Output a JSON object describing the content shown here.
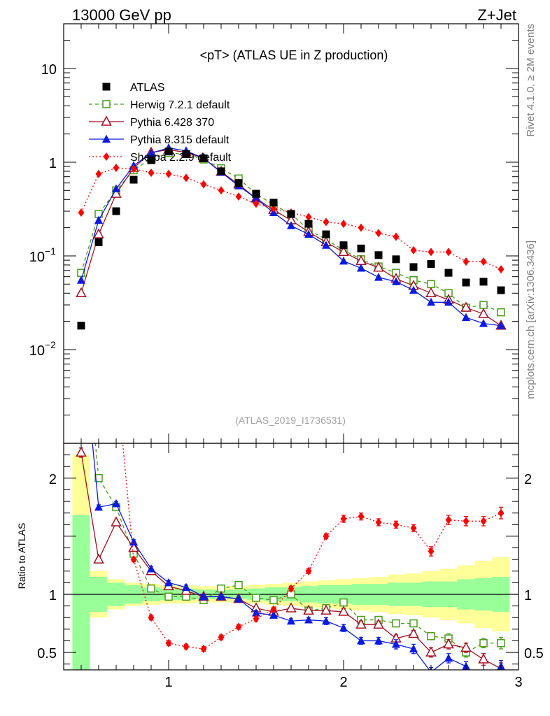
{
  "header": {
    "left": "13000 GeV pp",
    "right": "Z+Jet"
  },
  "side_labels": {
    "top": "Rivet 4.1.0, ≥ 2M events",
    "bottom": "mcplots.cern.ch [arXiv:1306.3436]"
  },
  "chart_data": {
    "type": "line",
    "title": "<pT> (ATLAS UE in Z production)",
    "analysis_id": "(ATLAS_2019_I1736531)",
    "xlabel": "",
    "ylabel_main": "",
    "ylabel_ratio": "Ratio to ATLAS",
    "xlim": [
      0.4,
      3.0
    ],
    "ylim_main_log": [
      0.001,
      30
    ],
    "ylim_ratio": [
      0.35,
      2.3
    ],
    "x_ticks": [
      {
        "value": 1,
        "label": "1"
      },
      {
        "value": 2,
        "label": "2"
      },
      {
        "value": 3,
        "label": "3"
      }
    ],
    "y_ticks_main": [
      {
        "value": 10,
        "label": "10",
        "sup": ""
      },
      {
        "value": 1,
        "label": "1",
        "sup": ""
      },
      {
        "value": 0.1,
        "label": "10",
        "sup": "−1"
      },
      {
        "value": 0.01,
        "label": "10",
        "sup": "−2"
      }
    ],
    "y_ticks_ratio": [
      {
        "value": 2,
        "label": "2"
      },
      {
        "value": 1,
        "label": "1"
      },
      {
        "value": 0.5,
        "label": "0.5"
      }
    ],
    "x": [
      0.5,
      0.6,
      0.7,
      0.8,
      0.9,
      1.0,
      1.1,
      1.2,
      1.3,
      1.4,
      1.5,
      1.6,
      1.7,
      1.8,
      1.9,
      2.0,
      2.1,
      2.2,
      2.3,
      2.4,
      2.5,
      2.6,
      2.7,
      2.8,
      2.9
    ],
    "atlas": [
      0.018,
      0.14,
      0.3,
      0.65,
      1.05,
      1.3,
      1.22,
      1.1,
      0.8,
      0.6,
      0.46,
      0.37,
      0.28,
      0.22,
      0.17,
      0.13,
      0.12,
      0.102,
      0.092,
      0.076,
      0.082,
      0.066,
      0.052,
      0.053,
      0.043
    ],
    "series": [
      {
        "name": "Herwig 7.2.1 default",
        "color": "#4a9a1a",
        "marker": "open-square",
        "dash": "5,4",
        "values": [
          0.066,
          0.28,
          0.5,
          0.82,
          1.1,
          1.25,
          1.22,
          1.07,
          0.86,
          0.67,
          0.46,
          0.35,
          0.28,
          0.19,
          0.15,
          0.115,
          0.092,
          0.077,
          0.066,
          0.055,
          0.05,
          0.04,
          0.028,
          0.03,
          0.025
        ],
        "ratio": [
          3.6,
          2.0,
          1.75,
          1.35,
          1.05,
          0.98,
          0.98,
          0.95,
          1.05,
          1.08,
          0.97,
          0.95,
          1.0,
          0.86,
          0.88,
          0.93,
          0.78,
          0.78,
          0.75,
          0.75,
          0.64,
          0.62,
          0.5,
          0.58,
          0.58
        ],
        "ratio_err": [
          0,
          0.02,
          0.02,
          0.02,
          0.02,
          0.02,
          0.02,
          0.02,
          0.02,
          0.02,
          0.02,
          0.02,
          0.02,
          0.02,
          0.03,
          0.03,
          0.03,
          0.03,
          0.03,
          0.03,
          0.03,
          0.04,
          0.04,
          0.04,
          0.05
        ]
      },
      {
        "name": "Pythia 6.428 370",
        "color": "#a01020",
        "marker": "open-triangle",
        "dash": "",
        "values": [
          0.04,
          0.17,
          0.46,
          0.87,
          1.27,
          1.36,
          1.27,
          1.1,
          0.79,
          0.58,
          0.41,
          0.31,
          0.24,
          0.18,
          0.14,
          0.11,
          0.088,
          0.075,
          0.057,
          0.048,
          0.04,
          0.034,
          0.028,
          0.024,
          0.018
        ],
        "ratio": [
          2.22,
          1.3,
          1.62,
          1.4,
          1.2,
          1.07,
          1.03,
          0.98,
          0.98,
          0.96,
          0.88,
          0.85,
          0.88,
          0.86,
          0.86,
          0.85,
          0.74,
          0.74,
          0.62,
          0.66,
          0.5,
          0.57,
          0.54,
          0.44,
          0.36
        ],
        "ratio_err": [
          0.04,
          0.02,
          0.02,
          0.02,
          0.02,
          0.02,
          0.02,
          0.02,
          0.02,
          0.02,
          0.02,
          0.02,
          0.02,
          0.02,
          0.02,
          0.03,
          0.03,
          0.03,
          0.03,
          0.03,
          0.04,
          0.04,
          0.04,
          0.05,
          0.05
        ]
      },
      {
        "name": "Pythia 8.315 default",
        "color": "#0a1ae0",
        "marker": "filled-triangle",
        "dash": "",
        "values": [
          0.055,
          0.24,
          0.52,
          0.92,
          1.25,
          1.42,
          1.32,
          1.1,
          0.78,
          0.56,
          0.41,
          0.29,
          0.21,
          0.17,
          0.13,
          0.088,
          0.074,
          0.059,
          0.053,
          0.043,
          0.032,
          0.032,
          0.022,
          0.019,
          0.018
        ],
        "ratio": [
          3.3,
          1.75,
          1.78,
          1.45,
          1.22,
          1.1,
          1.06,
          0.98,
          0.98,
          0.96,
          0.84,
          0.82,
          0.77,
          0.78,
          0.77,
          0.71,
          0.6,
          0.6,
          0.57,
          0.53,
          0.33,
          0.45,
          0.38,
          0.2,
          0.38
        ],
        "ratio_err": [
          0.05,
          0.02,
          0.02,
          0.02,
          0.02,
          0.02,
          0.02,
          0.02,
          0.02,
          0.02,
          0.02,
          0.02,
          0.02,
          0.02,
          0.03,
          0.03,
          0.03,
          0.03,
          0.04,
          0.04,
          0.04,
          0.04,
          0.04,
          0.05,
          0.05
        ]
      },
      {
        "name": "Sherpa 2.2.9 default",
        "color": "#ff0000",
        "marker": "filled-diamond",
        "dash": "2,3",
        "values": [
          0.29,
          0.75,
          0.87,
          0.85,
          0.77,
          0.75,
          0.68,
          0.58,
          0.5,
          0.43,
          0.36,
          0.32,
          0.29,
          0.26,
          0.23,
          0.22,
          0.2,
          0.175,
          0.16,
          0.115,
          0.11,
          0.11,
          0.087,
          0.087,
          0.072
        ],
        "ratio": [
          16.0,
          5.2,
          2.9,
          1.3,
          0.8,
          0.58,
          0.55,
          0.53,
          0.63,
          0.72,
          0.79,
          0.87,
          1.05,
          1.2,
          1.5,
          1.65,
          1.67,
          1.62,
          1.6,
          1.57,
          1.37,
          1.64,
          1.63,
          1.63,
          1.7
        ],
        "ratio_err": [
          0.1,
          0.05,
          0.03,
          0.02,
          0.02,
          0.02,
          0.02,
          0.02,
          0.02,
          0.02,
          0.02,
          0.02,
          0.02,
          0.02,
          0.02,
          0.03,
          0.03,
          0.03,
          0.03,
          0.03,
          0.04,
          0.04,
          0.04,
          0.04,
          0.05
        ]
      }
    ],
    "ratio_bands": {
      "x_edges": [
        0.45,
        0.55,
        0.65,
        0.75,
        0.85,
        0.95,
        1.05,
        1.15,
        1.25,
        1.35,
        1.45,
        1.55,
        1.65,
        1.75,
        1.85,
        1.95,
        2.05,
        2.15,
        2.25,
        2.35,
        2.45,
        2.55,
        2.65,
        2.75,
        2.85,
        2.95
      ],
      "green_lo": [
        0.0,
        0.85,
        0.9,
        0.92,
        0.94,
        0.95,
        0.95,
        0.96,
        0.96,
        0.96,
        0.95,
        0.94,
        0.94,
        0.93,
        0.92,
        0.92,
        0.91,
        0.91,
        0.9,
        0.9,
        0.89,
        0.89,
        0.87,
        0.86,
        0.85
      ],
      "green_hi": [
        1.68,
        1.15,
        1.1,
        1.08,
        1.06,
        1.05,
        1.05,
        1.04,
        1.04,
        1.04,
        1.05,
        1.06,
        1.06,
        1.07,
        1.08,
        1.08,
        1.09,
        1.09,
        1.1,
        1.1,
        1.11,
        1.11,
        1.13,
        1.14,
        1.15
      ],
      "yellow_lo": [
        0.0,
        0.8,
        0.87,
        0.9,
        0.91,
        0.92,
        0.92,
        0.93,
        0.93,
        0.93,
        0.92,
        0.91,
        0.9,
        0.89,
        0.88,
        0.87,
        0.86,
        0.85,
        0.83,
        0.82,
        0.8,
        0.78,
        0.75,
        0.71,
        0.68
      ],
      "yellow_hi": [
        2.2,
        1.2,
        1.13,
        1.1,
        1.09,
        1.08,
        1.08,
        1.07,
        1.07,
        1.07,
        1.08,
        1.09,
        1.1,
        1.11,
        1.12,
        1.13,
        1.14,
        1.15,
        1.17,
        1.18,
        1.2,
        1.22,
        1.25,
        1.29,
        1.32
      ]
    },
    "legend_label_atlas": "ATLAS",
    "legend_placement": "top-left"
  }
}
